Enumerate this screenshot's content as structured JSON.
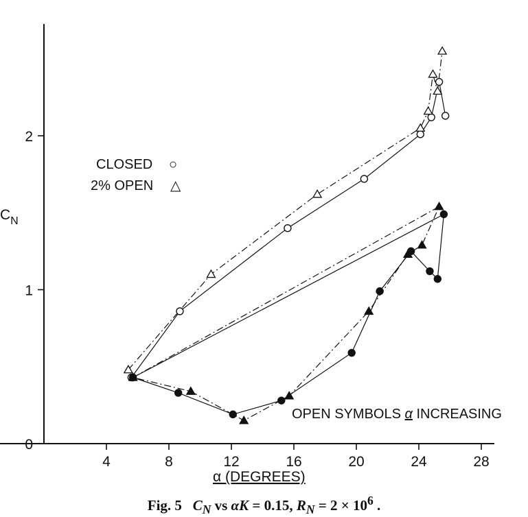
{
  "caption": "Fig. 5   C_N vs αK = 0.15, R_N = 2 × 10⁶ .",
  "chart_data": {
    "type": "line",
    "xlabel": "α (DEGREES)",
    "ylabel": "C_N",
    "xlim": [
      0,
      29
    ],
    "ylim": [
      0,
      2.6
    ],
    "x_ticks": [
      4,
      8,
      12,
      16,
      20,
      24,
      28
    ],
    "y_ticks": [
      0,
      1,
      2
    ],
    "y_tick_labels": [
      "0",
      "1",
      "2"
    ],
    "legend": [
      {
        "label": "CLOSED",
        "symbol": "○"
      },
      {
        "label": "2% OPEN",
        "symbol": "△"
      }
    ],
    "annotation": "OPEN SYMBOLS α INCREASING",
    "series": [
      {
        "name": "CLOSED",
        "marker": "circle",
        "filled": false,
        "line": "solid",
        "points": [
          [
            5.6,
            0.43
          ],
          [
            8.7,
            0.86
          ],
          [
            15.6,
            1.4
          ],
          [
            20.5,
            1.72
          ],
          [
            24.1,
            2.01
          ],
          [
            24.8,
            2.12
          ],
          [
            25.3,
            2.35
          ],
          [
            25.7,
            2.13
          ]
        ]
      },
      {
        "name": "2% OPEN",
        "marker": "triangle",
        "filled": false,
        "line": "dashed",
        "points": [
          [
            5.4,
            0.48
          ],
          [
            10.7,
            1.1
          ],
          [
            17.5,
            1.62
          ],
          [
            24.1,
            2.05
          ],
          [
            24.6,
            2.16
          ],
          [
            24.9,
            2.4
          ],
          [
            25.2,
            2.29
          ],
          [
            25.5,
            2.55
          ]
        ]
      },
      {
        "name": "CLOSED",
        "marker": "circle",
        "filled": true,
        "line": "solid",
        "points": [
          [
            5.7,
            0.43
          ],
          [
            25.6,
            1.49
          ],
          [
            25.2,
            1.07
          ],
          [
            24.7,
            1.12
          ],
          [
            23.5,
            1.25
          ],
          [
            21.5,
            0.99
          ],
          [
            19.7,
            0.59
          ],
          [
            15.2,
            0.28
          ],
          [
            12.1,
            0.19
          ],
          [
            8.6,
            0.33
          ],
          [
            5.7,
            0.43
          ]
        ]
      },
      {
        "name": "2% OPEN",
        "marker": "triangle",
        "filled": true,
        "line": "dashed",
        "points": [
          [
            5.7,
            0.43
          ],
          [
            25.3,
            1.54
          ],
          [
            24.2,
            1.29
          ],
          [
            23.3,
            1.23
          ],
          [
            20.8,
            0.86
          ],
          [
            15.7,
            0.31
          ],
          [
            12.8,
            0.15
          ],
          [
            9.4,
            0.34
          ],
          [
            5.7,
            0.43
          ]
        ]
      }
    ]
  }
}
